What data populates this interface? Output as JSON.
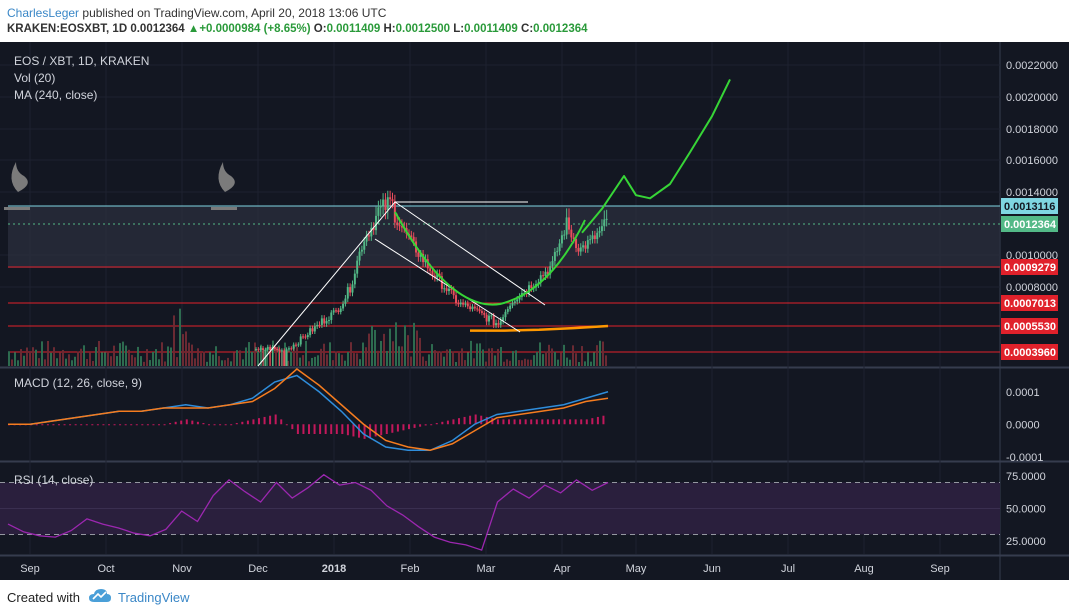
{
  "header": {
    "author": "CharlesLeger",
    "published_text": "published on TradingView.com, April 20, 2018 13:06 UTC",
    "symbol": "KRAKEN:EOSXBT, 1D",
    "last_price": "0.0012364",
    "up_arrow": "▲",
    "change": "+0.0000984 (+8.65%)",
    "o_label": "O:",
    "o_value": "0.0011409",
    "h_label": "H:",
    "h_value": "0.0012500",
    "l_label": "L:",
    "l_value": "0.0011409",
    "c_label": "C:",
    "c_value": "0.0012364"
  },
  "legend": {
    "title": "EOS / XBT, 1D, KRAKEN",
    "vol": "Vol (20)",
    "ma": "MA (240, close)",
    "macd": "MACD (12, 26, close, 9)",
    "rsi": "RSI (14, close)"
  },
  "footer": {
    "created_with": "Created with",
    "brand": "TradingView",
    "logo_icon": "tradingview-cloud-icon"
  },
  "colors": {
    "background": "#131722",
    "candle_up": "#53b987",
    "candle_down": "#eb4d5c",
    "support_line": "#e0212b",
    "badge_red": "#e0212b",
    "badge_green": "#53b987",
    "badge_cyan": "#7fd6e2",
    "projection": "#37d537",
    "macd_line": "#2f8ddb",
    "signal_line": "#f57c1f",
    "rsi_line": "#9c27b0",
    "ma_line": "#ff9800"
  },
  "chart_data": [
    {
      "type": "candlestick",
      "title": "EOS / XBT, 1D, KRAKEN",
      "ylim": [
        0.00037,
        0.0023
      ],
      "y_ticks": [
        0.0022,
        0.002,
        0.0018,
        0.0016,
        0.0014,
        0.001,
        0.0008
      ],
      "y_tick_labels": [
        "0.0022000",
        "0.0020000",
        "0.0018000",
        "0.0016000",
        "0.0014000",
        "0.0010000",
        "0.0008000"
      ],
      "x_ticks": [
        "Sep",
        "Oct",
        "Nov",
        "Dec",
        "2018",
        "Feb",
        "Mar",
        "Apr",
        "May",
        "Jun",
        "Jul",
        "Aug",
        "Sep"
      ],
      "series_close": [
        0.0004,
        0.00042,
        0.0004,
        0.00045,
        0.00052,
        0.00058,
        0.00064,
        0.0008,
        0.00112,
        0.00128,
        0.00134,
        0.00118,
        0.00102,
        0.0009,
        0.0008,
        0.0007,
        0.00066,
        0.0006,
        0.00056,
        0.00072,
        0.00078,
        0.00086,
        0.00094,
        0.00123,
        0.00104,
        0.00112,
        0.001236
      ],
      "price_levels": [
        {
          "value": 0.0013116,
          "label": "0.0013116",
          "style": "cyan"
        },
        {
          "value": 0.0012364,
          "label": "0.0012364",
          "style": "green"
        },
        {
          "value": 0.0009279,
          "label": "0.0009279",
          "style": "red"
        },
        {
          "value": 0.0007013,
          "label": "0.0007013",
          "style": "red"
        },
        {
          "value": 0.000553,
          "label": "0.0005530",
          "style": "red"
        },
        {
          "value": 0.000396,
          "label": "0.0003960",
          "style": "red"
        }
      ],
      "projection_path": [
        0.00117,
        0.0013,
        0.0015,
        0.00138,
        0.00136,
        0.00145,
        0.00165,
        0.00188,
        0.00211
      ],
      "ma_240": [
        0.000525,
        0.000525,
        0.00053,
        0.00054,
        0.000553
      ]
    },
    {
      "type": "line",
      "title": "MACD (12, 26, close, 9)",
      "ylim": [
        -0.00011,
        0.00017
      ],
      "y_ticks": [
        0.0001,
        0.0,
        -0.0001
      ],
      "y_tick_labels": [
        "0.0001",
        "0.0000",
        "-0.0001"
      ],
      "series": [
        {
          "name": "MACD",
          "values": [
            0.0,
            0.0,
            1e-05,
            2e-05,
            3e-05,
            4e-05,
            4e-05,
            5e-05,
            6e-05,
            5e-05,
            6e-05,
            8e-05,
            0.00013,
            0.00015,
            0.0001,
            4e-05,
            -3e-05,
            -7e-05,
            -8e-05,
            -8e-05,
            -5e-05,
            0.0,
            3e-05,
            4e-05,
            5e-05,
            6e-05,
            8e-05,
            0.0001
          ]
        },
        {
          "name": "Signal",
          "values": [
            0.0,
            0.0,
            1e-05,
            2e-05,
            3e-05,
            4e-05,
            4e-05,
            5e-05,
            5e-05,
            5e-05,
            6e-05,
            7e-05,
            0.00011,
            0.00017,
            0.00012,
            6e-05,
            0.0,
            -5e-05,
            -7e-05,
            -8e-05,
            -6e-05,
            -2e-05,
            2e-05,
            3e-05,
            4e-05,
            5e-05,
            7e-05,
            8e-05
          ]
        }
      ]
    },
    {
      "type": "line",
      "title": "RSI (14, close)",
      "ylim": [
        15,
        85
      ],
      "y_ticks": [
        75,
        50,
        25
      ],
      "y_tick_labels": [
        "75.0000",
        "50.0000",
        "25.0000"
      ],
      "bands": [
        70,
        30
      ],
      "series": [
        {
          "name": "RSI",
          "values": [
            38,
            32,
            29,
            28,
            33,
            42,
            38,
            35,
            31,
            29,
            34,
            48,
            40,
            60,
            72,
            63,
            55,
            70,
            58,
            66,
            76,
            68,
            70,
            64,
            52,
            45,
            36,
            28,
            24,
            22,
            18,
            55,
            65,
            58,
            68,
            62,
            72,
            64,
            70
          ]
        }
      ]
    }
  ]
}
